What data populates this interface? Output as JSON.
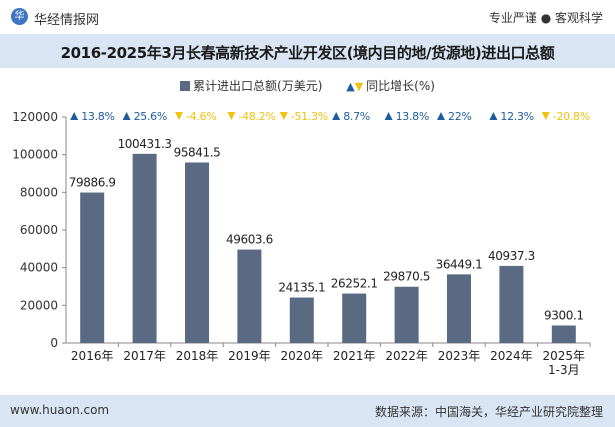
{
  "header": {
    "brand": "华经情报网",
    "tagline": "专业严谨 ● 客观科学"
  },
  "title": "2016-2025年3月长春高新技术产业开发区(境内目的地/货源地)进出口总额",
  "legend": {
    "series1": "累计进出口总额(万美元)",
    "series2": "同比增长(%)"
  },
  "footer": {
    "website": "www.huaon.com",
    "source": "数据来源：中国海关，华经产业研究院整理"
  },
  "colors": {
    "bar": "#5a6a82",
    "up": "#1f5c9c",
    "down": "#f2c20f",
    "header_band": "#d9e5f3"
  },
  "chart_data": {
    "type": "bar",
    "categories": [
      "2016年",
      "2017年",
      "2018年",
      "2019年",
      "2020年",
      "2021年",
      "2022年",
      "2023年",
      "2024年",
      "2025年\n1-3月"
    ],
    "series": [
      {
        "name": "累计进出口总额(万美元)",
        "values": [
          79886.9,
          100431.3,
          95841.5,
          49603.6,
          24135.1,
          26252.1,
          29870.5,
          36449.1,
          40937.3,
          9300.1
        ]
      },
      {
        "name": "同比增长(%)",
        "values": [
          13.8,
          25.6,
          -4.6,
          -48.2,
          -51.3,
          8.7,
          13.8,
          22,
          12.3,
          -20.8
        ],
        "labels": [
          "13.8%",
          "25.6%",
          "-4.6%",
          "-48.2%",
          "-51.3%",
          "8.7%",
          "13.8%",
          "22%",
          "12.3%",
          "-20.8%"
        ]
      }
    ],
    "value_labels": [
      "79886.9",
      "100431.3",
      "95841.5",
      "49603.6",
      "24135.1",
      "26252.1",
      "29870.5",
      "36449.1",
      "40937.3",
      "9300.1"
    ],
    "yticks": [
      0,
      20000,
      40000,
      60000,
      80000,
      100000,
      120000
    ],
    "ylim": [
      0,
      120000
    ],
    "grid": false,
    "legend_position": "top-center"
  }
}
